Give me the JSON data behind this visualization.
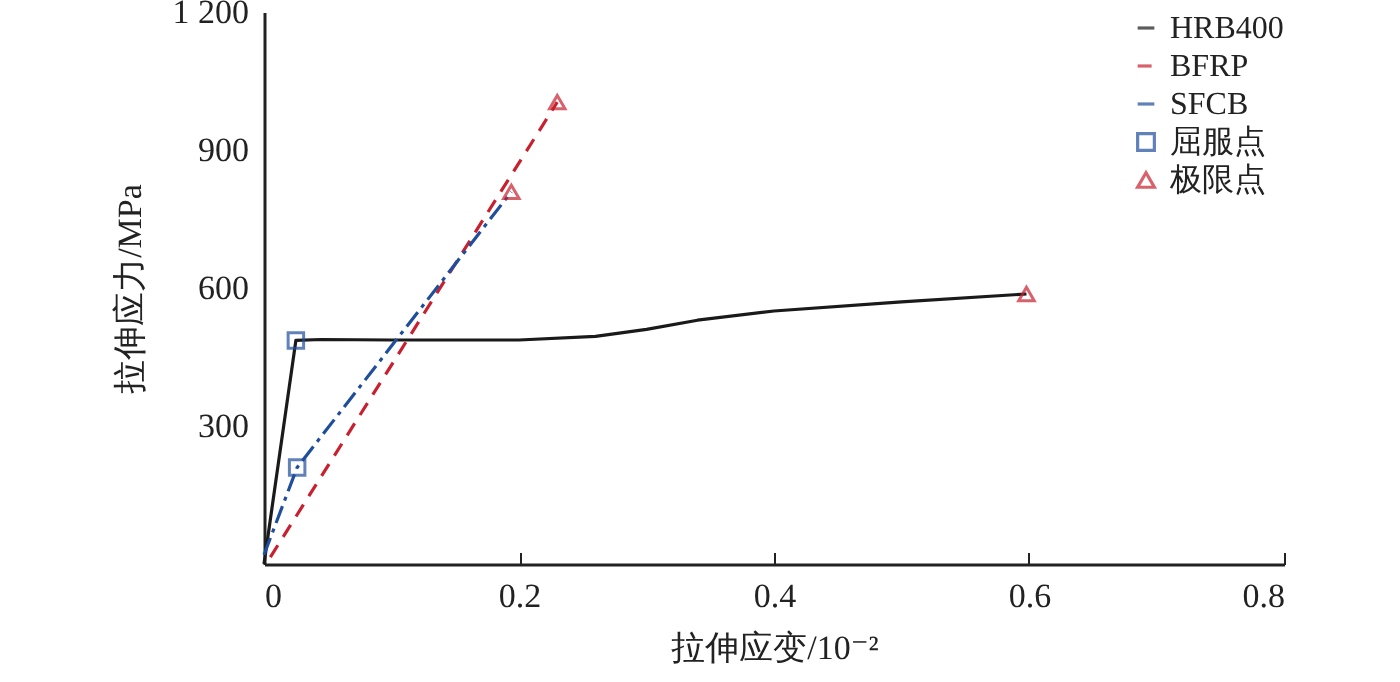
{
  "chart_data": {
    "type": "line",
    "xlabel": "拉伸应变/10⁻²",
    "ylabel": "拉伸应力/MPa",
    "xlim": [
      0,
      0.8
    ],
    "ylim": [
      0,
      1200
    ],
    "xticks": [
      0,
      0.2,
      0.4,
      0.6,
      0.8
    ],
    "yticks": [
      300,
      600,
      900,
      {
        "value": 1200,
        "label": "1 200"
      }
    ],
    "grid": false,
    "legend": "top right",
    "series": [
      {
        "name": "HRB400",
        "color": "#1a1a1a",
        "line_style": "solid",
        "x": [
          0,
          0.025,
          0.045,
          0.1,
          0.2,
          0.26,
          0.3,
          0.34,
          0.4,
          0.5,
          0.598
        ],
        "values": [
          0,
          486,
          488,
          487,
          487,
          495,
          510,
          530,
          550,
          570,
          587
        ]
      },
      {
        "name": "BFRP",
        "color": "#c8202f",
        "line_style": "dashed",
        "x": [
          0.005,
          0.23
        ],
        "values": [
          15,
          1004
        ]
      },
      {
        "name": "SFCB",
        "color": "#1f4e9c",
        "line_style": "dashdot",
        "x": [
          0,
          0.026,
          0.194
        ],
        "values": [
          20,
          210,
          809
        ]
      },
      {
        "name": "屈服点",
        "type": "scatter",
        "marker": "square",
        "color": "#1f4e9c",
        "x": [
          0.025,
          0.026
        ],
        "values": [
          486,
          210
        ]
      },
      {
        "name": "极限点",
        "type": "scatter",
        "marker": "triangle",
        "color": "#c8202f",
        "x": [
          0.23,
          0.194,
          0.598
        ],
        "values": [
          1004,
          809,
          587
        ]
      }
    ]
  }
}
